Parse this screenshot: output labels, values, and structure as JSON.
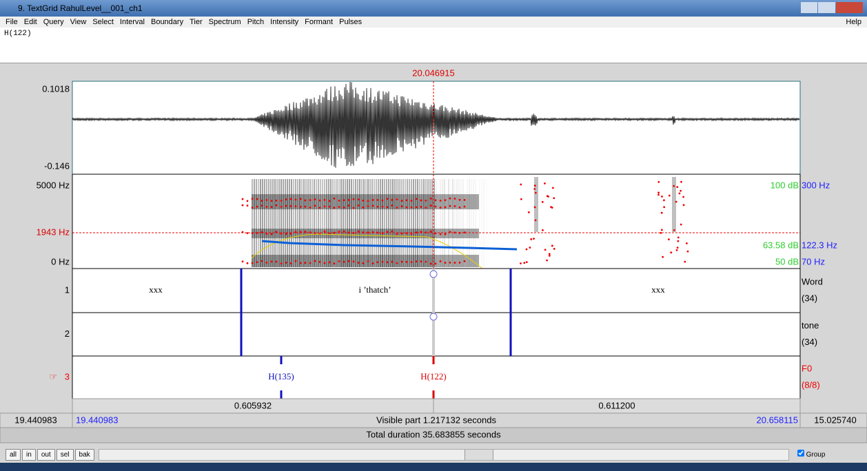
{
  "window": {
    "title": "9. TextGrid RahulLevel__001_ch1"
  },
  "menu": {
    "items": [
      "File",
      "Edit",
      "Query",
      "View",
      "Select",
      "Interval",
      "Boundary",
      "Tier",
      "Spectrum",
      "Pitch",
      "Intensity",
      "Formant",
      "Pulses"
    ],
    "help": "Help"
  },
  "text_field": "H(122)",
  "editor": {
    "cursor_time": "20.046915",
    "waveform": {
      "max": "0.1018",
      "min": "-0.146"
    },
    "spectrogram": {
      "top": "5000 Hz",
      "cursor": "1943 Hz",
      "bottom": "0 Hz",
      "right": [
        {
          "db": "100 dB",
          "hz": "300 Hz"
        },
        {
          "db": "63.58 dB",
          "hz": "122.3 Hz"
        },
        {
          "db": "50 dB",
          "hz": "70 Hz"
        }
      ]
    },
    "tiers": [
      {
        "number": "1",
        "name": "Word",
        "count": "(34)",
        "labels": [
          "xxx",
          "i ’thatch’",
          "xxx"
        ]
      },
      {
        "number": "2",
        "name": "tone",
        "count": "(34)"
      },
      {
        "pointer": "☞",
        "number": "3",
        "name": "F0",
        "count": "(8/8)",
        "labels": [
          "H(135)",
          "H(122)"
        ]
      }
    ],
    "selection": {
      "left": "0.605932",
      "right": "0.611200"
    },
    "window_row": {
      "start": "19.440983",
      "visible_start": "19.440983",
      "visible": "Visible part 1.217132 seconds",
      "visible_end": "20.658115",
      "end": "15.025740"
    },
    "total": "Total duration 35.683855 seconds"
  },
  "controls": {
    "buttons": [
      "all",
      "in",
      "out",
      "sel",
      "bak"
    ],
    "group": "Group"
  }
}
